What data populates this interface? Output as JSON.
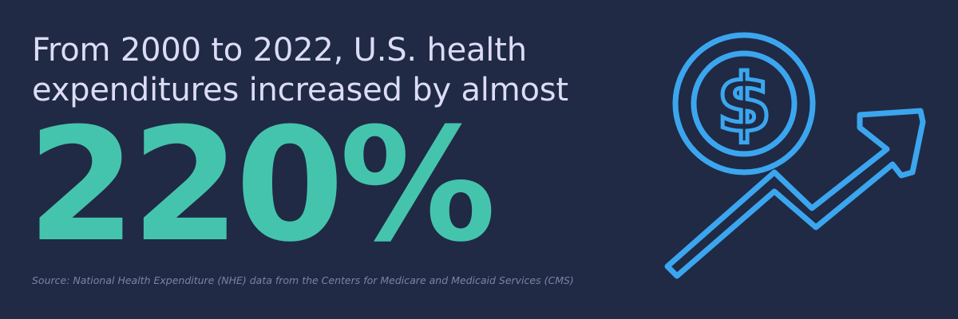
{
  "headline": {
    "line1": "From 2000 to 2022, U.S. health",
    "line2": "expenditures increased by almost"
  },
  "stat": {
    "value": "220%"
  },
  "source": {
    "text": "Source: National Health Expenditure (NHE) data from the Centers for Medicare and Medicaid Services (CMS)"
  },
  "icon": {
    "name": "dollar-magnifier-growth-arrow-icon",
    "symbol": "$"
  },
  "colors": {
    "background": "#202a44",
    "headline": "#dcdcf4",
    "stat": "#45c4ad",
    "source": "#7b84a6",
    "icon": "#3ba6ef"
  }
}
